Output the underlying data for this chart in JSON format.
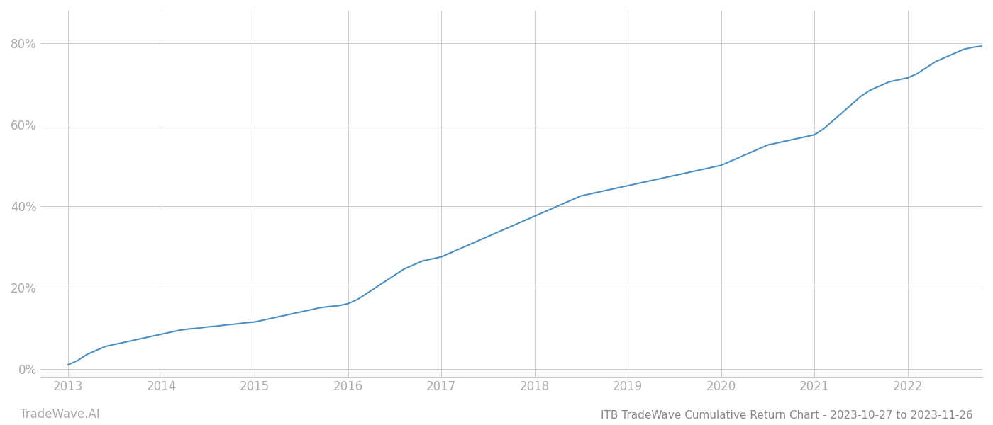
{
  "title": "ITB TradeWave Cumulative Return Chart - 2023-10-27 to 2023-11-26",
  "watermark": "TradeWave.AI",
  "x_years": [
    2013,
    2014,
    2015,
    2016,
    2017,
    2018,
    2019,
    2020,
    2021,
    2022
  ],
  "x_values": [
    2013.0,
    2013.1,
    2013.2,
    2013.3,
    2013.4,
    2013.5,
    2013.6,
    2013.7,
    2013.8,
    2013.9,
    2014.0,
    2014.1,
    2014.2,
    2014.3,
    2014.4,
    2014.5,
    2014.6,
    2014.7,
    2014.8,
    2014.9,
    2015.0,
    2015.1,
    2015.2,
    2015.3,
    2015.4,
    2015.5,
    2015.6,
    2015.7,
    2015.8,
    2015.9,
    2016.0,
    2016.1,
    2016.2,
    2016.3,
    2016.4,
    2016.5,
    2016.6,
    2016.7,
    2016.8,
    2016.9,
    2017.0,
    2017.1,
    2017.2,
    2017.3,
    2017.4,
    2017.5,
    2017.6,
    2017.7,
    2017.8,
    2017.9,
    2018.0,
    2018.1,
    2018.2,
    2018.3,
    2018.4,
    2018.5,
    2018.6,
    2018.7,
    2018.8,
    2018.9,
    2019.0,
    2019.1,
    2019.2,
    2019.3,
    2019.4,
    2019.5,
    2019.6,
    2019.7,
    2019.8,
    2019.9,
    2020.0,
    2020.1,
    2020.2,
    2020.3,
    2020.4,
    2020.5,
    2020.6,
    2020.7,
    2020.8,
    2020.9,
    2021.0,
    2021.1,
    2021.2,
    2021.3,
    2021.4,
    2021.5,
    2021.6,
    2021.7,
    2021.8,
    2021.9,
    2022.0,
    2022.1,
    2022.2,
    2022.3,
    2022.4,
    2022.5,
    2022.6,
    2022.7,
    2022.8,
    2022.9,
    2023.0
  ],
  "y_values": [
    1.0,
    2.0,
    3.5,
    4.5,
    5.5,
    6.0,
    6.5,
    7.0,
    7.5,
    8.0,
    8.5,
    9.0,
    9.5,
    9.8,
    10.0,
    10.3,
    10.5,
    10.8,
    11.0,
    11.3,
    11.5,
    12.0,
    12.5,
    13.0,
    13.5,
    14.0,
    14.5,
    15.0,
    15.3,
    15.5,
    16.0,
    17.0,
    18.5,
    20.0,
    21.5,
    23.0,
    24.5,
    25.5,
    26.5,
    27.0,
    27.5,
    28.5,
    29.5,
    30.5,
    31.5,
    32.5,
    33.5,
    34.5,
    35.5,
    36.5,
    37.5,
    38.5,
    39.5,
    40.5,
    41.5,
    42.5,
    43.0,
    43.5,
    44.0,
    44.5,
    45.0,
    45.5,
    46.0,
    46.5,
    47.0,
    47.5,
    48.0,
    48.5,
    49.0,
    49.5,
    50.0,
    51.0,
    52.0,
    53.0,
    54.0,
    55.0,
    55.5,
    56.0,
    56.5,
    57.0,
    57.5,
    59.0,
    61.0,
    63.0,
    65.0,
    67.0,
    68.5,
    69.5,
    70.5,
    71.0,
    71.5,
    72.5,
    74.0,
    75.5,
    76.5,
    77.5,
    78.5,
    79.0,
    79.3,
    79.5,
    79.5
  ],
  "line_color": "#4a90c4",
  "line_width": 1.5,
  "background_color": "#ffffff",
  "grid_color": "#cccccc",
  "yticks": [
    0,
    20,
    40,
    60,
    80
  ],
  "ylim": [
    -2,
    88
  ],
  "xlim": [
    2012.7,
    2022.8
  ],
  "tick_color": "#aaaaaa",
  "label_color": "#aaaaaa",
  "title_color": "#888888",
  "watermark_color": "#aaaaaa",
  "title_fontsize": 11,
  "tick_fontsize": 12,
  "watermark_fontsize": 12
}
